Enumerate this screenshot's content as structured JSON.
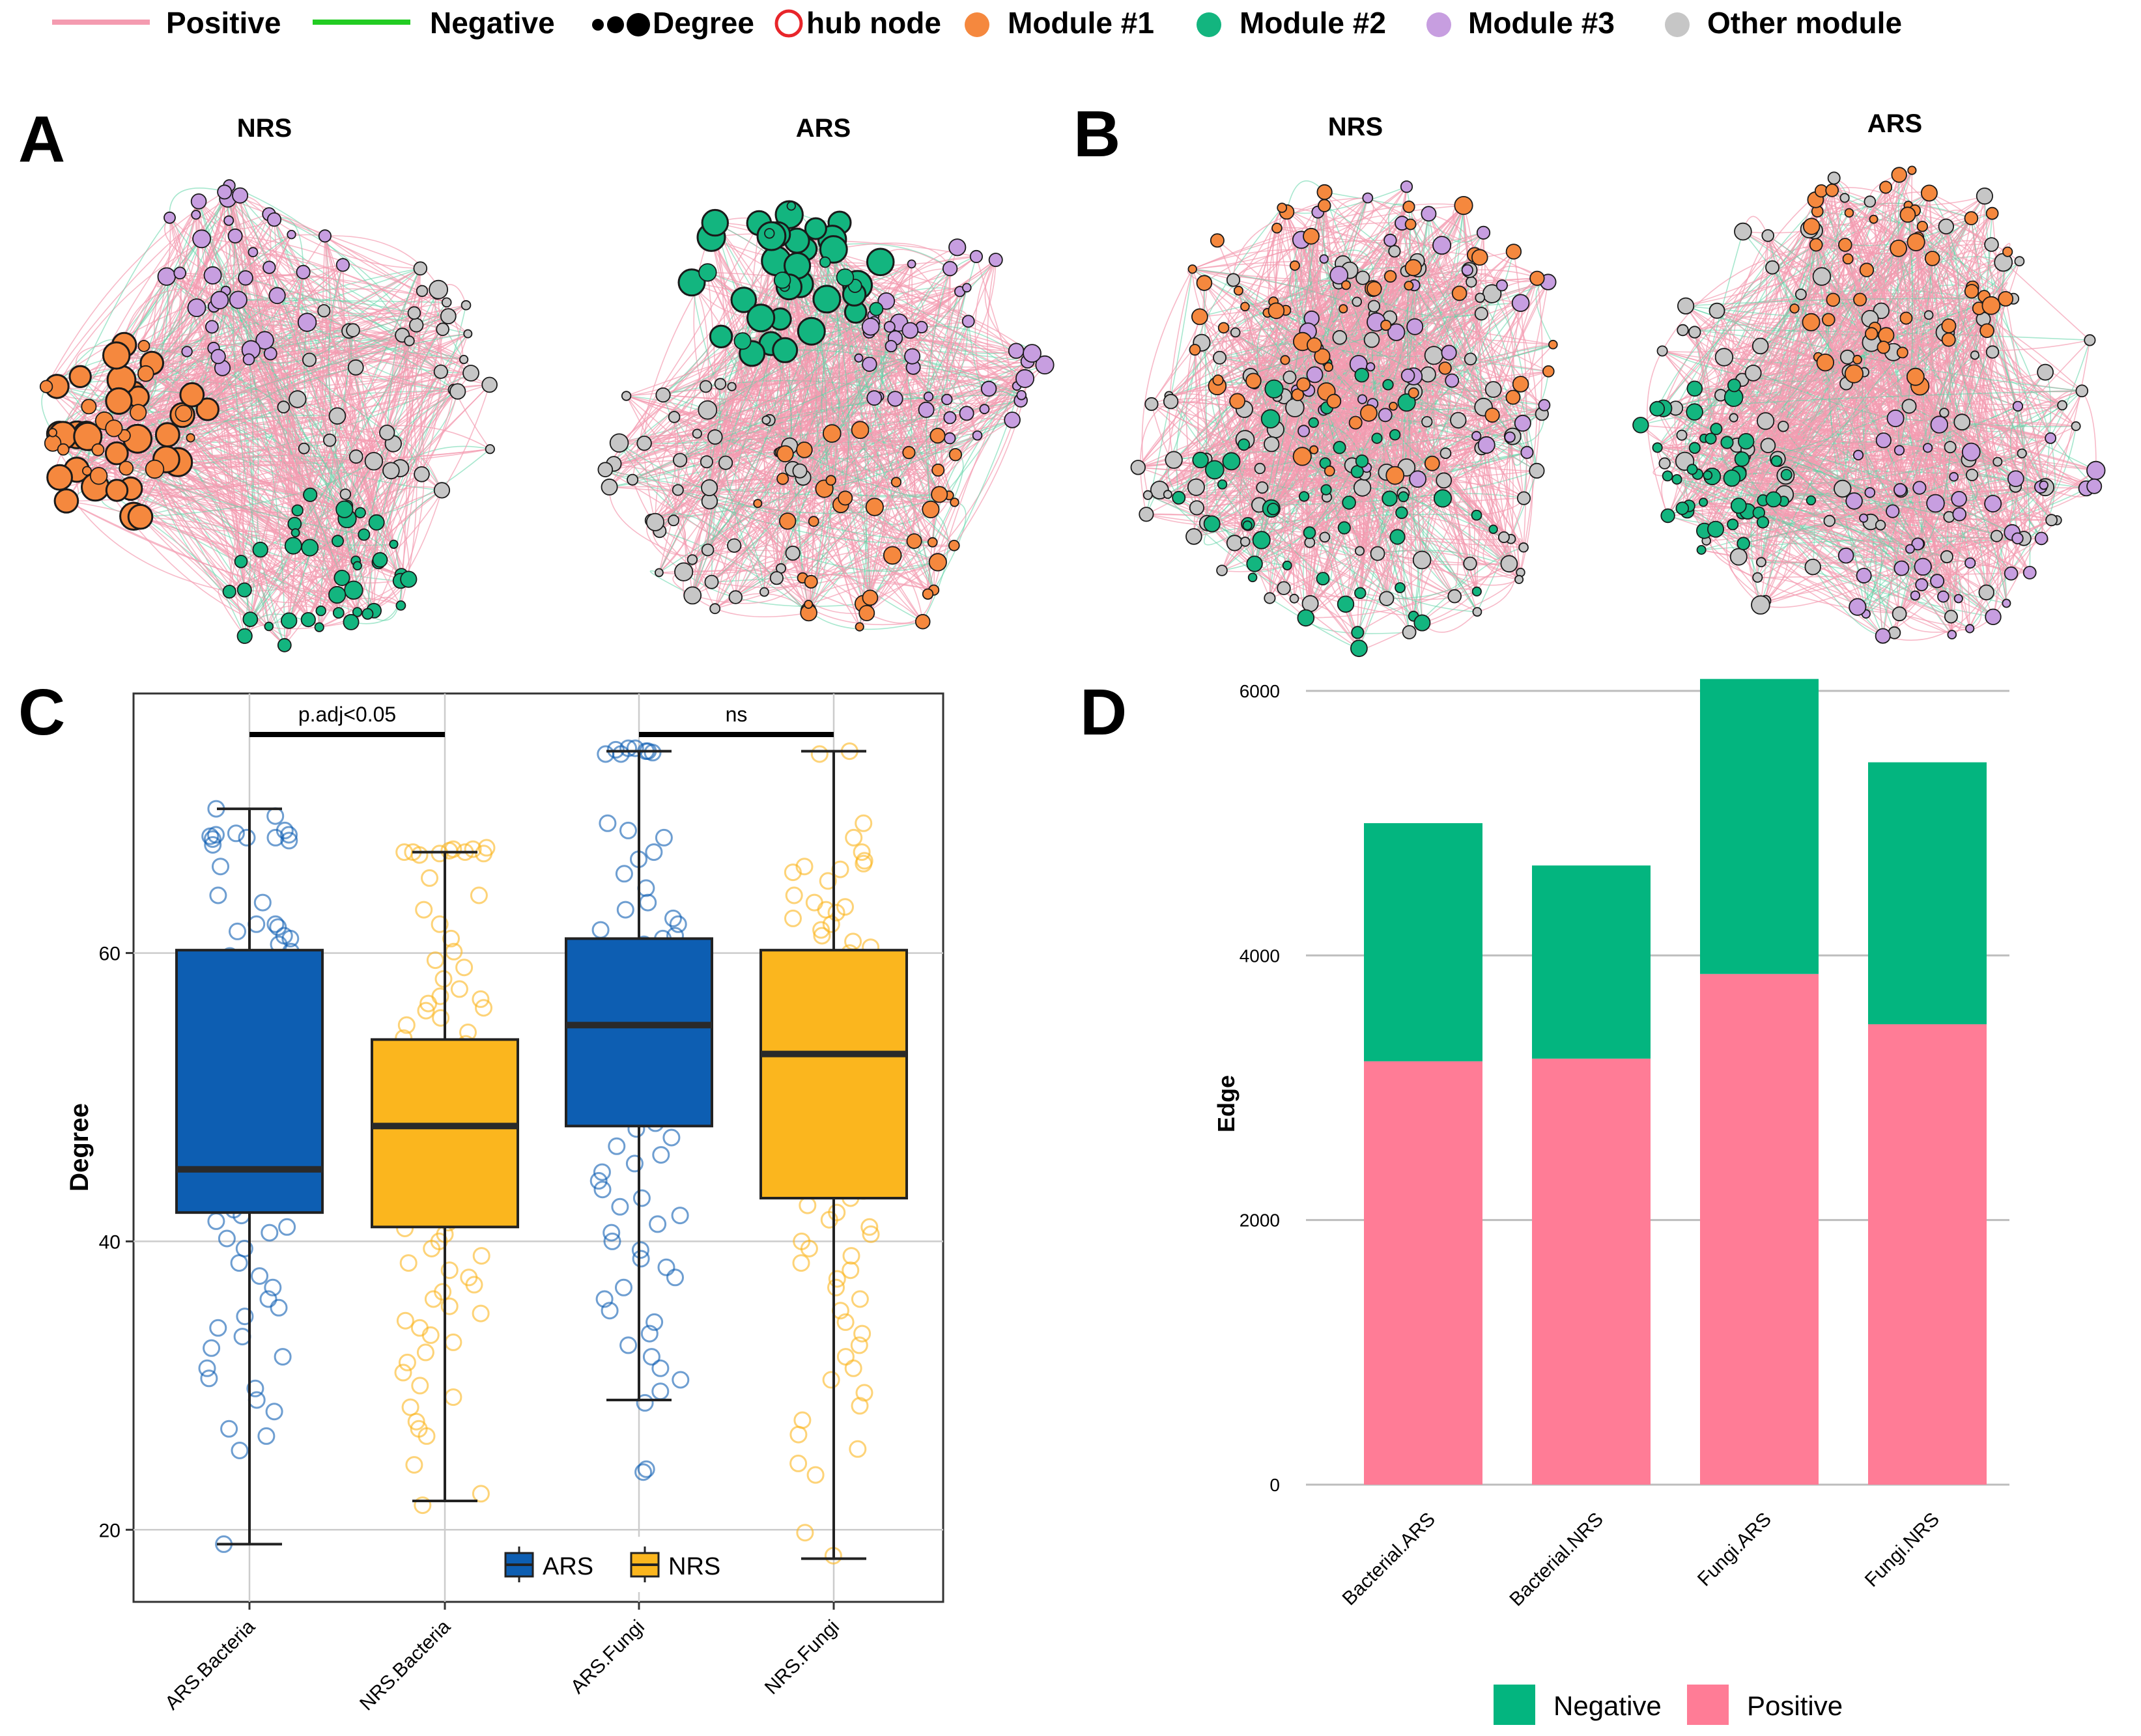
{
  "legend_top": {
    "positive": "Positive",
    "negative": "Negative",
    "degree": "Degree",
    "hub": "hub node",
    "module1": "Module #1",
    "module2": "Module #2",
    "module3": "Module #3",
    "other": "Other module"
  },
  "colors": {
    "positive_edge": "#f49bb0",
    "negative_edge": "#22cc22",
    "module1": "#f5883e",
    "module2": "#13b57f",
    "module3": "#c79ee0",
    "other": "#c6c6c6",
    "hub": "#e8252a",
    "ars_box": "#0d5eb2",
    "nrs_box": "#fbb61e",
    "bar_negative": "#03b57f",
    "bar_positive": "#ff7c96",
    "grid": "#cccccc"
  },
  "panels": {
    "A": "A",
    "B": "B",
    "C": "C",
    "D": "D",
    "a_left_title": "NRS",
    "a_right_title": "ARS",
    "b_left_title": "NRS",
    "b_right_title": "ARS"
  },
  "networks": [
    {
      "panel": "A",
      "title": "NRS",
      "counts": {
        "module1": 48,
        "module2": 42,
        "module3": 38,
        "other": 40
      }
    },
    {
      "panel": "A",
      "title": "ARS",
      "counts": {
        "module1": 40,
        "module2": 40,
        "module3": 44,
        "other": 46
      }
    },
    {
      "panel": "B",
      "title": "NRS",
      "counts": {
        "module1": 64,
        "module2": 52,
        "module3": 44,
        "other": 96
      }
    },
    {
      "panel": "B",
      "title": "ARS",
      "counts": {
        "module1": 52,
        "module2": 44,
        "module3": 50,
        "other": 96
      }
    }
  ],
  "chart_data": [
    {
      "type": "box",
      "panel": "C",
      "ylabel": "Degree",
      "ylim": [
        15,
        78
      ],
      "yticks": [
        20,
        40,
        60
      ],
      "categories": [
        "ARS.Bacteria",
        "NRS.Bacteria",
        "ARS.Fungi",
        "NRS.Fungi"
      ],
      "groups": [
        "ARS",
        "NRS",
        "ARS",
        "NRS"
      ],
      "boxes": [
        {
          "min": 19,
          "q1": 42,
          "median": 45,
          "q3": 60.2,
          "max": 70
        },
        {
          "min": 22,
          "q1": 41,
          "median": 48,
          "q3": 54,
          "max": 67
        },
        {
          "min": 29,
          "q1": 48,
          "median": 55,
          "q3": 61,
          "max": 74
        },
        {
          "min": 18,
          "q1": 43,
          "median": 53,
          "q3": 60.2,
          "max": 74
        }
      ],
      "annotations": [
        {
          "label": "p.adj<0.05",
          "from": 0,
          "to": 1,
          "y": 77
        },
        {
          "label": "ns",
          "from": 2,
          "to": 3,
          "y": 77
        }
      ],
      "legend": [
        "ARS",
        "NRS"
      ],
      "points": [
        [
          68.2,
          68,
          67.9,
          68.3,
          68.1,
          67.8,
          68,
          68.2,
          69.5,
          70,
          68.5,
          67.5,
          66,
          64,
          63.5,
          62,
          62,
          61.8,
          61.5,
          61.2,
          61,
          60.6,
          60.1,
          59.8,
          59.6,
          59.2,
          58.5,
          58,
          57.6,
          57.2,
          56.8,
          56.5,
          56,
          55.4,
          55,
          54.6,
          54.2,
          53.8,
          53.3,
          53,
          52.6,
          52.2,
          51.8,
          51.4,
          51,
          50.6,
          50.2,
          49.8,
          49.4,
          49,
          48.6,
          48.2,
          47.8,
          47.4,
          47,
          46.5,
          46.2,
          45.8,
          45.4,
          45,
          44.6,
          44.2,
          43.8,
          43.4,
          43,
          42.6,
          42.2,
          41.8,
          41.4,
          41,
          40.6,
          40.2,
          39.5,
          38.5,
          37.6,
          36.8,
          36,
          35.4,
          34.8,
          34,
          33.4,
          32.6,
          32,
          31.2,
          30.5,
          29.8,
          29,
          28.2,
          27,
          26.5,
          25.5,
          19
        ],
        [
          67,
          67.2,
          66.9,
          67.1,
          67,
          67.3,
          66.8,
          67,
          67.2,
          66.9,
          65.2,
          64,
          63,
          62,
          61,
          60.1,
          59.5,
          59,
          58.2,
          57.5,
          57,
          56.8,
          56.5,
          56.2,
          56,
          55.5,
          55,
          54.5,
          54.1,
          53.7,
          53.3,
          52.9,
          52.5,
          52.1,
          51.7,
          51.3,
          50.9,
          50.5,
          50.1,
          49.7,
          49.3,
          48.9,
          48.5,
          48.1,
          47.7,
          47.3,
          46.9,
          46.5,
          46.1,
          45.7,
          45.3,
          44.9,
          44.5,
          44.1,
          43.7,
          43.3,
          42.9,
          42.5,
          42.1,
          41.7,
          41.3,
          40.9,
          40.5,
          40,
          39.5,
          39,
          38.5,
          38,
          37.5,
          37,
          36.5,
          36,
          35.5,
          35,
          34.5,
          34,
          33.5,
          33,
          32.3,
          31.6,
          30.9,
          30,
          29.2,
          28.5,
          27.5,
          27,
          26.5,
          24.5,
          22.5,
          21.7
        ],
        [
          74.2,
          74,
          73.8,
          74.1,
          73.9,
          74.2,
          74,
          73.8,
          69,
          68.5,
          68,
          67,
          66.5,
          65.5,
          64.5,
          63.5,
          63,
          62.4,
          62,
          61.6,
          61.2,
          61,
          60.6,
          60.2,
          59.8,
          59.4,
          59,
          58.6,
          58.2,
          57.8,
          57.4,
          57,
          56.6,
          56.2,
          55.8,
          55.4,
          55,
          54.6,
          54.2,
          53.8,
          53.4,
          53,
          52.6,
          52.2,
          51.8,
          51.4,
          51,
          50.6,
          50.2,
          49.8,
          49.4,
          49,
          48.6,
          48.2,
          47.8,
          47.2,
          46.6,
          46,
          45.4,
          44.8,
          44.2,
          43.6,
          43,
          42.4,
          41.8,
          41.2,
          40.6,
          40,
          39.4,
          38.8,
          38.2,
          37.5,
          36.8,
          36,
          35.2,
          34.4,
          33.6,
          32.8,
          32,
          31.2,
          30.4,
          29.6,
          28.8,
          24.2,
          24
        ],
        [
          74,
          73.8,
          69,
          68,
          67,
          66.4,
          66.2,
          66,
          65.8,
          65.6,
          65,
          64,
          63.5,
          63.2,
          63,
          62.8,
          62.4,
          62,
          61.6,
          61.2,
          60.8,
          60.4,
          60,
          59.6,
          59.2,
          58.8,
          58.4,
          58,
          57.6,
          57.2,
          56.8,
          56.4,
          56,
          55.6,
          55.2,
          54.8,
          54.4,
          54,
          53.6,
          53.2,
          52.8,
          52.4,
          52,
          51.6,
          51.2,
          50.8,
          50.4,
          50,
          49.6,
          49.2,
          48.8,
          48.4,
          48,
          47.6,
          47.2,
          46.8,
          46.4,
          46,
          45.6,
          45.2,
          44.8,
          44.4,
          44,
          43.5,
          43,
          42.5,
          42,
          41.5,
          41,
          40.5,
          40,
          39.5,
          39,
          38.5,
          38,
          37.4,
          36.8,
          36,
          35.2,
          34.4,
          33.6,
          32.8,
          32,
          31.2,
          30.4,
          29.5,
          28.6,
          27.6,
          26.6,
          25.6,
          24.6,
          23.8,
          19.8,
          18.2
        ]
      ]
    },
    {
      "type": "bar",
      "stacked": true,
      "panel": "D",
      "ylabel": "Edge",
      "ylim": [
        0,
        6300
      ],
      "yticks": [
        0,
        2000,
        4000,
        6000
      ],
      "categories": [
        "Bacterial.ARS",
        "Bacterial.NRS",
        "Fungi.ARS",
        "Fungi.NRS"
      ],
      "series": [
        {
          "name": "Positive",
          "values": [
            3200,
            3220,
            3860,
            3480
          ]
        },
        {
          "name": "Negative",
          "values": [
            1800,
            1460,
            2230,
            1980
          ]
        }
      ],
      "legend": [
        "Negative",
        "Positive"
      ]
    }
  ]
}
